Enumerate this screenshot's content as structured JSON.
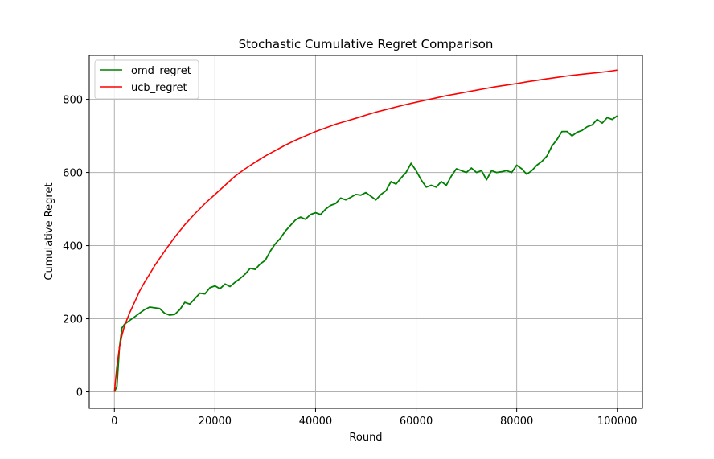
{
  "chart_data": {
    "type": "line",
    "title": "Stochastic Cumulative Regret Comparison",
    "xlabel": "Round",
    "ylabel": "Cumulative Regret",
    "xlim": [
      -5000,
      105000
    ],
    "ylim": [
      -45,
      920
    ],
    "xticks": [
      0,
      20000,
      40000,
      60000,
      80000,
      100000
    ],
    "yticks": [
      0,
      200,
      400,
      600,
      800
    ],
    "grid": true,
    "legend_position": "top-left",
    "series": [
      {
        "name": "omd_regret",
        "color": "#008000",
        "x": [
          0,
          500,
          1000,
          1500,
          2000,
          3000,
          4000,
          5000,
          6000,
          7000,
          8000,
          9000,
          10000,
          11000,
          12000,
          13000,
          14000,
          15000,
          16000,
          17000,
          18000,
          19000,
          20000,
          21000,
          22000,
          23000,
          24000,
          25000,
          26000,
          27000,
          28000,
          29000,
          30000,
          31000,
          32000,
          33000,
          34000,
          35000,
          36000,
          37000,
          38000,
          39000,
          40000,
          41000,
          42000,
          43000,
          44000,
          45000,
          46000,
          47000,
          48000,
          49000,
          50000,
          51000,
          52000,
          53000,
          54000,
          55000,
          56000,
          57000,
          58000,
          59000,
          60000,
          61000,
          62000,
          63000,
          64000,
          65000,
          66000,
          67000,
          68000,
          69000,
          70000,
          71000,
          72000,
          73000,
          74000,
          75000,
          76000,
          77000,
          78000,
          79000,
          80000,
          81000,
          82000,
          83000,
          84000,
          85000,
          86000,
          87000,
          88000,
          89000,
          90000,
          91000,
          92000,
          93000,
          94000,
          95000,
          96000,
          97000,
          98000,
          99000,
          100000
        ],
        "y": [
          0,
          15,
          120,
          175,
          185,
          195,
          205,
          215,
          225,
          232,
          230,
          228,
          215,
          210,
          212,
          225,
          245,
          240,
          255,
          270,
          268,
          285,
          290,
          282,
          295,
          288,
          300,
          310,
          322,
          338,
          335,
          350,
          360,
          385,
          405,
          420,
          440,
          455,
          470,
          478,
          472,
          485,
          490,
          485,
          500,
          510,
          515,
          530,
          525,
          532,
          540,
          538,
          545,
          535,
          525,
          540,
          550,
          575,
          568,
          585,
          600,
          625,
          605,
          580,
          560,
          565,
          560,
          575,
          565,
          590,
          610,
          605,
          600,
          612,
          600,
          605,
          580,
          605,
          600,
          602,
          605,
          600,
          620,
          610,
          595,
          605,
          620,
          630,
          645,
          672,
          690,
          712,
          712,
          700,
          710,
          715,
          725,
          730,
          745,
          735,
          750,
          745,
          755
        ]
      },
      {
        "name": "ucb_regret",
        "color": "#ff0000",
        "x": [
          0,
          500,
          1000,
          1500,
          2000,
          3000,
          4000,
          5000,
          6000,
          7000,
          8000,
          10000,
          12000,
          14000,
          16000,
          18000,
          20000,
          22000,
          24000,
          26000,
          28000,
          30000,
          32000,
          34000,
          36000,
          38000,
          40000,
          42000,
          44000,
          46000,
          48000,
          50000,
          52000,
          54000,
          56000,
          58000,
          60000,
          62000,
          64000,
          66000,
          68000,
          70000,
          72000,
          74000,
          76000,
          78000,
          80000,
          82000,
          84000,
          86000,
          88000,
          90000,
          92000,
          94000,
          96000,
          98000,
          100000
        ],
        "y": [
          0,
          70,
          120,
          155,
          180,
          215,
          245,
          275,
          300,
          322,
          345,
          385,
          423,
          457,
          487,
          515,
          540,
          565,
          590,
          610,
          628,
          645,
          660,
          675,
          688,
          700,
          712,
          722,
          732,
          740,
          748,
          757,
          765,
          772,
          779,
          786,
          792,
          798,
          804,
          810,
          815,
          820,
          825,
          830,
          835,
          839,
          843,
          848,
          852,
          856,
          860,
          864,
          867,
          870,
          873,
          876,
          880
        ]
      }
    ]
  }
}
